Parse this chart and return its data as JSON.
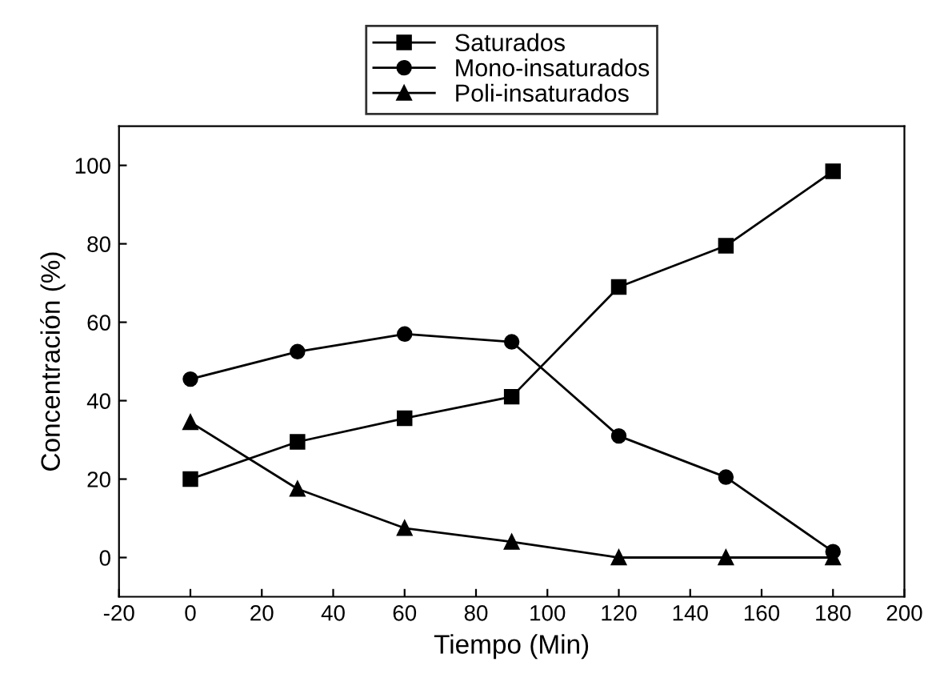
{
  "chart_data": {
    "type": "line",
    "xlabel": "Tiempo (Min)",
    "ylabel": "Concentración (%)",
    "x": [
      0,
      30,
      60,
      90,
      120,
      150,
      180
    ],
    "series": [
      {
        "name": "Saturados",
        "color": "#000000",
        "marker": "square",
        "values": [
          20,
          29.5,
          35.5,
          41,
          69,
          79.5,
          98.5
        ]
      },
      {
        "name": "Mono-insaturados",
        "color": "#000000",
        "marker": "circle",
        "values": [
          45.5,
          52.5,
          57,
          55,
          31,
          20.5,
          1.5
        ]
      },
      {
        "name": "Poli-insaturados",
        "color": "#000000",
        "marker": "triangle",
        "values": [
          34.5,
          17.5,
          7.5,
          4,
          0,
          0,
          0
        ]
      }
    ],
    "xlim": [
      -20,
      200
    ],
    "xticks": [
      -20,
      0,
      20,
      40,
      60,
      80,
      100,
      120,
      140,
      160,
      180,
      200
    ],
    "ylim": [
      -10,
      110
    ],
    "yticks": [
      0,
      20,
      40,
      60,
      80,
      100
    ],
    "grid": false,
    "legend": "top",
    "line_style": "solid"
  }
}
